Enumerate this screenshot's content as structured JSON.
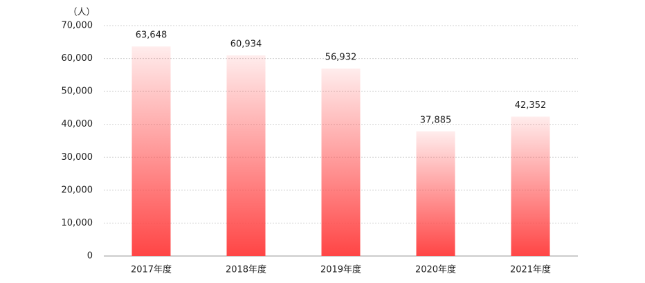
{
  "chart_data": {
    "type": "bar",
    "y_unit": "（人）",
    "categories": [
      "2017年度",
      "2018年度",
      "2019年度",
      "2020年度",
      "2021年度"
    ],
    "values": [
      63648,
      60934,
      56932,
      37885,
      42352
    ],
    "value_labels": [
      "63,648",
      "60,934",
      "56,932",
      "37,885",
      "42,352"
    ],
    "color": "#ff4545",
    "ylim": [
      0,
      70000
    ],
    "yticks": [
      0,
      {
        "value": 10000,
        "label": "10,000"
      },
      {
        "value": 20000,
        "label": "20,000"
      },
      {
        "value": 30000,
        "label": "30,000"
      },
      {
        "value": 40000,
        "label": "40,000"
      },
      {
        "value": 50000,
        "label": "50,000"
      },
      {
        "value": 60000,
        "label": "60,000"
      },
      {
        "value": 70000,
        "label": "70,000"
      }
    ],
    "grid": true
  }
}
